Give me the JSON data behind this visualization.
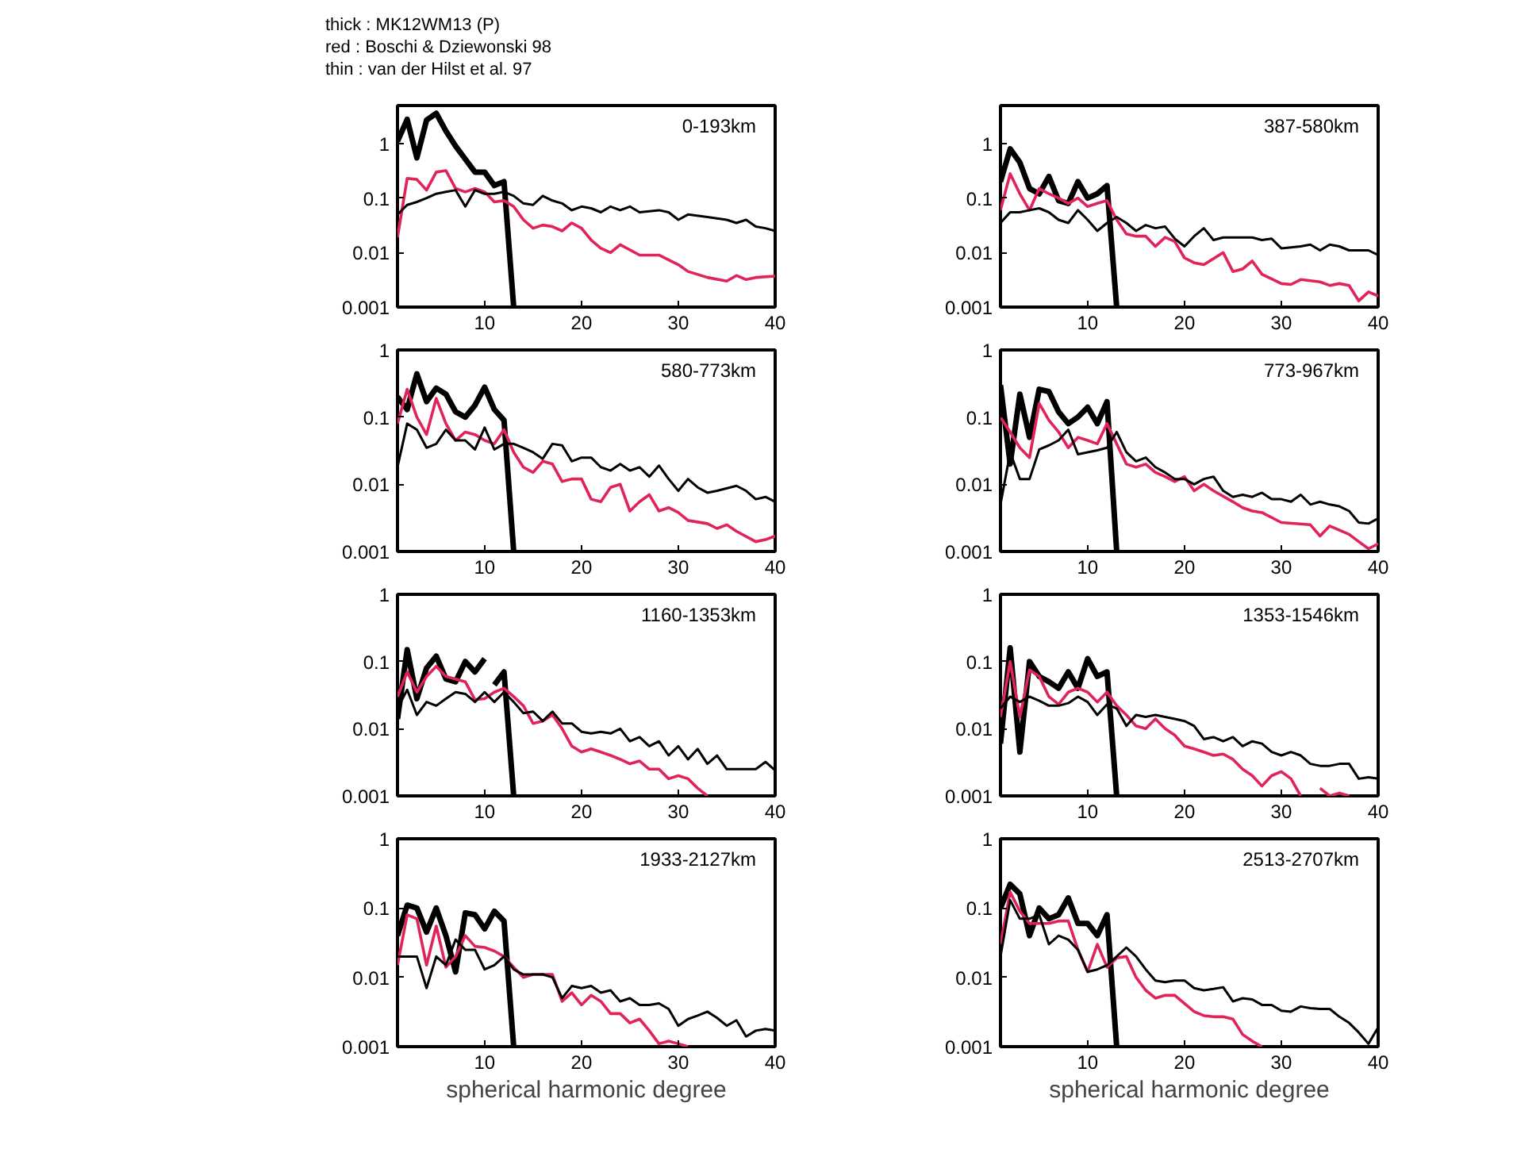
{
  "chart_data": [
    {
      "type": "line",
      "title": "0-193km",
      "annotations": [
        "thick : MK12WM13 (P)",
        "red : Boschi & Dziewonski 98",
        "thin : van der Hilst et al. 97"
      ],
      "log": "y",
      "xlim": [
        1,
        40
      ],
      "ylim": [
        0.001,
        5
      ],
      "xticks": [
        10,
        20,
        30,
        40
      ],
      "yticks": [
        0.001,
        0.01,
        0.1,
        1
      ],
      "series": [
        {
          "color": "#000000",
          "x": [
            1,
            2,
            3,
            4,
            5,
            6,
            7,
            8,
            9,
            10,
            11,
            12,
            13
          ],
          "values": [
            1.1,
            2.8,
            0.55,
            2.7,
            3.6,
            1.7,
            0.9,
            0.52,
            0.3,
            0.3,
            0.17,
            0.2,
            0.001
          ]
        },
        {
          "color": "#e0245a",
          "x": [
            1,
            2,
            3,
            4,
            5,
            6,
            7,
            8,
            9,
            10,
            11,
            12,
            13,
            14,
            15,
            16,
            17,
            18,
            19,
            20,
            21,
            22,
            23,
            24,
            26,
            28,
            30,
            31,
            33,
            35,
            36,
            37,
            38,
            40
          ],
          "values": [
            0.019,
            0.23,
            0.22,
            0.14,
            0.3,
            0.32,
            0.15,
            0.13,
            0.15,
            0.13,
            0.085,
            0.09,
            0.07,
            0.04,
            0.028,
            0.032,
            0.03,
            0.025,
            0.035,
            0.028,
            0.017,
            0.012,
            0.01,
            0.014,
            0.009,
            0.009,
            0.006,
            0.0045,
            0.0035,
            0.003,
            0.0038,
            0.0032,
            0.0035,
            0.0037
          ]
        },
        {
          "color": "#000000",
          "x": [
            1,
            2,
            3,
            4,
            5,
            6,
            7,
            8,
            9,
            10,
            11,
            12,
            13,
            14,
            15,
            16,
            17,
            18,
            19,
            20,
            21,
            22,
            23,
            24,
            25,
            26,
            28,
            29,
            30,
            31,
            33,
            35,
            36,
            37,
            38,
            39,
            40
          ],
          "values": [
            0.05,
            0.075,
            0.085,
            0.1,
            0.12,
            0.13,
            0.14,
            0.07,
            0.14,
            0.12,
            0.12,
            0.13,
            0.11,
            0.08,
            0.075,
            0.11,
            0.09,
            0.08,
            0.06,
            0.07,
            0.065,
            0.055,
            0.07,
            0.06,
            0.07,
            0.055,
            0.06,
            0.055,
            0.04,
            0.05,
            0.045,
            0.04,
            0.035,
            0.04,
            0.03,
            0.028,
            0.025
          ]
        }
      ]
    },
    {
      "type": "line",
      "title": "387-580km",
      "log": "y",
      "xlim": [
        1,
        40
      ],
      "ylim": [
        0.001,
        5
      ],
      "xticks": [
        10,
        20,
        30,
        40
      ],
      "yticks": [
        0.001,
        0.01,
        0.1,
        1
      ],
      "series": [
        {
          "color": "#000000",
          "x": [
            1,
            2,
            3,
            4,
            5,
            6,
            7,
            8,
            9,
            10,
            11,
            12,
            13
          ],
          "values": [
            0.2,
            0.8,
            0.45,
            0.15,
            0.12,
            0.25,
            0.09,
            0.08,
            0.2,
            0.1,
            0.12,
            0.17,
            0.001
          ]
        },
        {
          "color": "#e0245a",
          "x": [
            1,
            2,
            3,
            4,
            5,
            6,
            7,
            8,
            9,
            10,
            11,
            12,
            13,
            14,
            15,
            16,
            17,
            18,
            19,
            20,
            21,
            22,
            24,
            25,
            26,
            27,
            28,
            30,
            31,
            32,
            34,
            35,
            36,
            37,
            38,
            39,
            40
          ],
          "values": [
            0.06,
            0.28,
            0.12,
            0.06,
            0.15,
            0.12,
            0.1,
            0.08,
            0.1,
            0.07,
            0.08,
            0.09,
            0.04,
            0.022,
            0.02,
            0.02,
            0.013,
            0.019,
            0.016,
            0.008,
            0.0065,
            0.006,
            0.01,
            0.0045,
            0.005,
            0.007,
            0.004,
            0.0027,
            0.0026,
            0.0032,
            0.0029,
            0.0025,
            0.0027,
            0.0025,
            0.0013,
            0.0019,
            0.0016
          ]
        },
        {
          "color": "#000000",
          "x": [
            1,
            2,
            3,
            4,
            5,
            6,
            7,
            8,
            9,
            10,
            11,
            12,
            13,
            14,
            15,
            16,
            17,
            18,
            19,
            20,
            21,
            22,
            23,
            24,
            27,
            28,
            29,
            30,
            32,
            33,
            34,
            35,
            36,
            37,
            39,
            40
          ],
          "values": [
            0.035,
            0.055,
            0.055,
            0.06,
            0.065,
            0.055,
            0.04,
            0.035,
            0.06,
            0.04,
            0.025,
            0.035,
            0.045,
            0.035,
            0.025,
            0.032,
            0.028,
            0.03,
            0.018,
            0.013,
            0.02,
            0.028,
            0.017,
            0.019,
            0.019,
            0.017,
            0.018,
            0.012,
            0.013,
            0.014,
            0.011,
            0.014,
            0.013,
            0.011,
            0.011,
            0.009
          ]
        }
      ]
    },
    {
      "type": "line",
      "title": "580-773km",
      "log": "y",
      "xlim": [
        1,
        40
      ],
      "ylim": [
        0.001,
        1
      ],
      "xticks": [
        10,
        20,
        30,
        40
      ],
      "yticks": [
        0.001,
        0.01,
        0.1,
        1
      ],
      "series": [
        {
          "color": "#000000",
          "x": [
            1,
            2,
            3,
            4,
            5,
            6,
            7,
            8,
            9,
            10,
            11,
            12,
            13
          ],
          "values": [
            0.2,
            0.13,
            0.44,
            0.17,
            0.27,
            0.22,
            0.12,
            0.1,
            0.15,
            0.28,
            0.13,
            0.09,
            0.001
          ]
        },
        {
          "color": "#e0245a",
          "x": [
            1,
            2,
            3,
            4,
            5,
            6,
            7,
            8,
            9,
            10,
            11,
            12,
            13,
            14,
            15,
            16,
            17,
            18,
            19,
            20,
            21,
            22,
            23,
            24,
            25,
            26,
            27,
            28,
            29,
            30,
            31,
            33,
            34,
            35,
            36,
            38,
            39,
            40
          ],
          "values": [
            0.08,
            0.26,
            0.1,
            0.055,
            0.19,
            0.08,
            0.045,
            0.06,
            0.055,
            0.045,
            0.04,
            0.065,
            0.03,
            0.018,
            0.015,
            0.022,
            0.02,
            0.011,
            0.012,
            0.012,
            0.006,
            0.0055,
            0.009,
            0.01,
            0.004,
            0.0055,
            0.007,
            0.004,
            0.0045,
            0.0038,
            0.0029,
            0.0026,
            0.0022,
            0.0025,
            0.002,
            0.0014,
            0.0015,
            0.0017
          ]
        },
        {
          "color": "#000000",
          "x": [
            1,
            2,
            3,
            4,
            5,
            6,
            7,
            8,
            9,
            10,
            11,
            12,
            13,
            14,
            15,
            16,
            17,
            18,
            19,
            20,
            21,
            22,
            23,
            24,
            25,
            26,
            27,
            28,
            29,
            30,
            31,
            32,
            33,
            34,
            36,
            37,
            38,
            39,
            40
          ],
          "values": [
            0.018,
            0.08,
            0.065,
            0.035,
            0.04,
            0.065,
            0.045,
            0.045,
            0.033,
            0.07,
            0.033,
            0.04,
            0.04,
            0.035,
            0.03,
            0.024,
            0.04,
            0.038,
            0.022,
            0.025,
            0.025,
            0.018,
            0.016,
            0.02,
            0.016,
            0.018,
            0.013,
            0.019,
            0.012,
            0.008,
            0.012,
            0.009,
            0.0075,
            0.008,
            0.0095,
            0.008,
            0.006,
            0.0065,
            0.0055
          ]
        }
      ]
    },
    {
      "type": "line",
      "title": "773-967km",
      "log": "y",
      "xlim": [
        1,
        40
      ],
      "ylim": [
        0.001,
        1
      ],
      "xticks": [
        10,
        20,
        30,
        40
      ],
      "yticks": [
        0.001,
        0.01,
        0.1,
        1
      ],
      "series": [
        {
          "color": "#000000",
          "x": [
            1,
            2,
            3,
            4,
            5,
            6,
            7,
            8,
            9,
            10,
            11,
            12,
            13
          ],
          "values": [
            0.3,
            0.02,
            0.22,
            0.05,
            0.26,
            0.24,
            0.12,
            0.08,
            0.1,
            0.14,
            0.08,
            0.17,
            0.001
          ]
        },
        {
          "color": "#e0245a",
          "x": [
            1,
            2,
            3,
            4,
            5,
            6,
            7,
            8,
            9,
            10,
            11,
            12,
            13,
            14,
            15,
            16,
            17,
            18,
            19,
            20,
            21,
            22,
            23,
            25,
            26,
            27,
            28,
            30,
            33,
            34,
            35,
            37,
            38,
            39,
            40
          ],
          "values": [
            0.1,
            0.06,
            0.035,
            0.025,
            0.16,
            0.09,
            0.06,
            0.035,
            0.05,
            0.045,
            0.04,
            0.08,
            0.04,
            0.02,
            0.018,
            0.02,
            0.015,
            0.013,
            0.011,
            0.013,
            0.008,
            0.01,
            0.008,
            0.0055,
            0.0045,
            0.004,
            0.0038,
            0.0027,
            0.0025,
            0.0017,
            0.0024,
            0.0018,
            0.0014,
            0.0011,
            0.0013
          ]
        },
        {
          "color": "#000000",
          "x": [
            1,
            2,
            3,
            4,
            5,
            6,
            7,
            8,
            9,
            10,
            11,
            12,
            13,
            14,
            15,
            16,
            17,
            18,
            19,
            20,
            21,
            22,
            23,
            24,
            25,
            26,
            27,
            28,
            29,
            30,
            31,
            32,
            33,
            34,
            35,
            36,
            37,
            38,
            39,
            40
          ],
          "values": [
            0.005,
            0.03,
            0.012,
            0.012,
            0.033,
            0.038,
            0.045,
            0.065,
            0.028,
            0.03,
            0.032,
            0.035,
            0.06,
            0.03,
            0.022,
            0.025,
            0.018,
            0.015,
            0.012,
            0.012,
            0.01,
            0.012,
            0.013,
            0.008,
            0.0065,
            0.007,
            0.0065,
            0.0075,
            0.006,
            0.006,
            0.0055,
            0.007,
            0.005,
            0.0055,
            0.005,
            0.0047,
            0.004,
            0.0027,
            0.0026,
            0.0031
          ]
        }
      ]
    },
    {
      "type": "line",
      "title": "1160-1353km",
      "log": "y",
      "xlim": [
        1,
        40
      ],
      "ylim": [
        0.001,
        1
      ],
      "xticks": [
        10,
        20,
        30,
        40
      ],
      "yticks": [
        0.001,
        0.01,
        0.1,
        1
      ],
      "series": [
        {
          "color": "#000000",
          "x": [
            1,
            2,
            3,
            4,
            5,
            6,
            7,
            8,
            9,
            10,
            10.5,
            11,
            12,
            13
          ],
          "values": [
            0.014,
            0.15,
            0.028,
            0.08,
            0.12,
            0.055,
            0.05,
            0.1,
            0.07,
            0.11,
            null,
            0.045,
            0.07,
            0.001
          ]
        },
        {
          "color": "#e0245a",
          "x": [
            1,
            2,
            3,
            4,
            5,
            6,
            7,
            8,
            9,
            10,
            11,
            12,
            13,
            14,
            15,
            16,
            17,
            18,
            19,
            20,
            21,
            22,
            23,
            24,
            25,
            26,
            27,
            28,
            29,
            30,
            31,
            32,
            33
          ],
          "values": [
            0.03,
            0.07,
            0.035,
            0.06,
            0.085,
            0.06,
            0.055,
            0.05,
            0.027,
            0.028,
            0.035,
            0.04,
            0.03,
            0.022,
            0.012,
            0.013,
            0.016,
            0.01,
            0.0055,
            0.0045,
            0.005,
            0.0045,
            0.004,
            0.0035,
            0.003,
            0.0033,
            0.0025,
            0.0025,
            0.0018,
            0.002,
            0.0018,
            0.0013,
            0.001
          ]
        },
        {
          "color": "#000000",
          "x": [
            1,
            2,
            3,
            4,
            5,
            6,
            7,
            8,
            9,
            10,
            11,
            12,
            13,
            14,
            15,
            16,
            17,
            18,
            19,
            20,
            21,
            22,
            23,
            24,
            25,
            26,
            27,
            28,
            29,
            30,
            31,
            32,
            33,
            34,
            35,
            36,
            38,
            39,
            40
          ],
          "values": [
            0.02,
            0.038,
            0.016,
            0.025,
            0.022,
            0.028,
            0.035,
            0.033,
            0.025,
            0.035,
            0.025,
            0.035,
            0.025,
            0.017,
            0.018,
            0.013,
            0.018,
            0.012,
            0.012,
            0.009,
            0.0085,
            0.009,
            0.0085,
            0.01,
            0.0065,
            0.0075,
            0.0055,
            0.0065,
            0.004,
            0.0055,
            0.0035,
            0.005,
            0.003,
            0.004,
            0.0025,
            0.0025,
            0.0025,
            0.0032,
            0.0024
          ]
        }
      ]
    },
    {
      "type": "line",
      "title": "1353-1546km",
      "log": "y",
      "xlim": [
        1,
        40
      ],
      "ylim": [
        0.001,
        1
      ],
      "xticks": [
        10,
        20,
        30,
        40
      ],
      "yticks": [
        0.001,
        0.01,
        0.1,
        1
      ],
      "series": [
        {
          "color": "#000000",
          "x": [
            1,
            2,
            3,
            4,
            5,
            6,
            7,
            8,
            9,
            10,
            11,
            12,
            13
          ],
          "values": [
            0.006,
            0.16,
            0.0045,
            0.1,
            0.06,
            0.05,
            0.04,
            0.07,
            0.04,
            0.11,
            0.06,
            0.07,
            0.001
          ]
        },
        {
          "color": "#e0245a",
          "x": [
            1,
            2,
            3,
            4,
            5,
            6,
            7,
            8,
            9,
            10,
            11,
            12,
            13,
            14,
            15,
            16,
            17,
            18,
            19,
            20,
            21,
            22,
            23,
            24,
            25,
            26,
            27,
            28,
            29,
            30,
            31,
            32,
            33,
            34,
            35,
            36,
            37
          ],
          "values": [
            0.015,
            0.1,
            0.015,
            0.075,
            0.06,
            0.03,
            0.023,
            0.035,
            0.04,
            0.035,
            0.025,
            0.035,
            0.022,
            0.016,
            0.011,
            0.01,
            0.014,
            0.01,
            0.008,
            0.0055,
            0.005,
            0.0045,
            0.004,
            0.0042,
            0.0035,
            0.0025,
            0.002,
            0.0014,
            0.002,
            0.0023,
            0.0018,
            0.001,
            null,
            0.0013,
            0.001,
            0.0011,
            0.001
          ]
        },
        {
          "color": "#000000",
          "x": [
            1,
            2,
            3,
            4,
            5,
            6,
            7,
            8,
            9,
            10,
            11,
            12,
            13,
            14,
            15,
            16,
            17,
            18,
            19,
            20,
            21,
            22,
            23,
            24,
            25,
            26,
            27,
            28,
            29,
            30,
            31,
            32,
            33,
            34,
            35,
            36,
            37,
            38,
            39,
            40
          ],
          "values": [
            0.02,
            0.03,
            0.025,
            0.03,
            0.026,
            0.022,
            0.022,
            0.024,
            0.03,
            0.025,
            0.016,
            0.023,
            0.02,
            0.011,
            0.016,
            0.015,
            0.016,
            0.015,
            0.014,
            0.013,
            0.011,
            0.007,
            0.0075,
            0.0065,
            0.0075,
            0.0055,
            0.0065,
            0.006,
            0.0045,
            0.004,
            0.0045,
            0.004,
            0.003,
            0.0028,
            0.0028,
            0.003,
            0.003,
            0.0018,
            0.0019,
            0.0018
          ]
        }
      ]
    },
    {
      "type": "line",
      "title": "1933-2127km",
      "xlabel": "spherical harmonic degree",
      "log": "y",
      "xlim": [
        1,
        40
      ],
      "ylim": [
        0.001,
        1
      ],
      "xticks": [
        10,
        20,
        30,
        40
      ],
      "yticks": [
        0.001,
        0.01,
        0.1,
        1
      ],
      "series": [
        {
          "color": "#000000",
          "x": [
            1,
            2,
            3,
            4,
            5,
            6,
            7,
            8,
            9,
            10,
            11,
            12,
            13
          ],
          "values": [
            0.04,
            0.11,
            0.1,
            0.045,
            0.1,
            0.04,
            0.012,
            0.085,
            0.08,
            0.05,
            0.09,
            0.065,
            0.001
          ]
        },
        {
          "color": "#e0245a",
          "x": [
            1,
            2,
            3,
            4,
            5,
            6,
            7,
            8,
            9,
            10,
            11,
            12,
            13,
            14,
            15,
            16,
            17,
            18,
            19,
            20,
            21,
            22,
            23,
            24,
            25,
            26,
            27,
            28,
            29,
            30,
            31
          ],
          "values": [
            0.015,
            0.08,
            0.07,
            0.015,
            0.055,
            0.014,
            0.02,
            0.04,
            0.028,
            0.027,
            0.024,
            0.02,
            0.014,
            0.01,
            0.011,
            0.011,
            0.011,
            0.0045,
            0.006,
            0.004,
            0.0055,
            0.0045,
            0.003,
            0.003,
            0.0022,
            0.0025,
            0.0017,
            0.0011,
            0.0012,
            0.0011,
            0.001
          ]
        },
        {
          "color": "#000000",
          "x": [
            1,
            2,
            3,
            4,
            5,
            6,
            7,
            8,
            9,
            10,
            11,
            12,
            13,
            14,
            15,
            16,
            17,
            18,
            19,
            20,
            21,
            22,
            23,
            24,
            25,
            26,
            27,
            28,
            29,
            30,
            31,
            32,
            33,
            34,
            35,
            36,
            37,
            38,
            39,
            40
          ],
          "values": [
            0.02,
            0.02,
            0.02,
            0.007,
            0.02,
            0.015,
            0.035,
            0.025,
            0.025,
            0.013,
            0.015,
            0.02,
            0.013,
            0.011,
            0.011,
            0.011,
            0.01,
            0.005,
            0.0075,
            0.007,
            0.0075,
            0.006,
            0.0065,
            0.0045,
            0.005,
            0.004,
            0.004,
            0.0042,
            0.0035,
            0.002,
            0.0025,
            0.0028,
            0.0032,
            0.0026,
            0.002,
            0.0024,
            0.0014,
            0.0017,
            0.0018,
            0.0017
          ]
        }
      ]
    },
    {
      "type": "line",
      "title": "2513-2707km",
      "xlabel": "spherical harmonic degree",
      "log": "y",
      "xlim": [
        1,
        40
      ],
      "ylim": [
        0.001,
        1
      ],
      "xticks": [
        10,
        20,
        30,
        40
      ],
      "yticks": [
        0.001,
        0.01,
        0.1,
        1
      ],
      "series": [
        {
          "color": "#000000",
          "x": [
            1,
            2,
            3,
            4,
            5,
            6,
            7,
            8,
            9,
            10,
            11,
            12,
            13
          ],
          "values": [
            0.1,
            0.22,
            0.16,
            0.04,
            0.1,
            0.07,
            0.08,
            0.14,
            0.06,
            0.06,
            0.04,
            0.08,
            0.001
          ]
        },
        {
          "color": "#e0245a",
          "x": [
            1,
            2,
            3,
            4,
            5,
            6,
            7,
            8,
            9,
            10,
            11,
            12,
            13,
            14,
            15,
            16,
            17,
            18,
            19,
            20,
            21,
            22,
            23,
            24,
            25,
            26,
            27,
            28
          ],
          "values": [
            0.03,
            0.17,
            0.09,
            0.06,
            0.06,
            0.06,
            0.065,
            0.065,
            0.025,
            0.012,
            0.03,
            0.014,
            0.019,
            0.02,
            0.01,
            0.0065,
            0.005,
            0.0055,
            0.0055,
            0.0042,
            0.0032,
            0.0028,
            0.0027,
            0.0027,
            0.0025,
            0.0015,
            0.0012,
            0.001
          ]
        },
        {
          "color": "#000000",
          "x": [
            1,
            2,
            3,
            4,
            5,
            6,
            7,
            8,
            9,
            10,
            11,
            12,
            13,
            14,
            15,
            16,
            17,
            18,
            19,
            20,
            21,
            22,
            23,
            24,
            25,
            26,
            27,
            28,
            29,
            30,
            31,
            32,
            33,
            34,
            35,
            36,
            37,
            38,
            39,
            40
          ],
          "values": [
            0.02,
            0.13,
            0.07,
            0.07,
            0.08,
            0.03,
            0.04,
            0.035,
            0.025,
            0.012,
            0.013,
            0.015,
            0.02,
            0.027,
            0.02,
            0.013,
            0.009,
            0.0085,
            0.009,
            0.009,
            0.007,
            0.0065,
            0.0068,
            0.0072,
            0.0045,
            0.005,
            0.0048,
            0.004,
            0.004,
            0.0033,
            0.0032,
            0.0038,
            0.0036,
            0.0035,
            0.0035,
            0.0027,
            0.0022,
            0.0016,
            0.0011,
            0.0019
          ]
        }
      ]
    }
  ]
}
